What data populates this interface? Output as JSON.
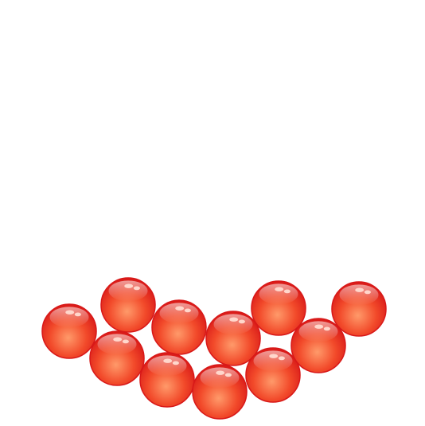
{
  "scene": {
    "background_color": "#ffffff",
    "object": "red-ball",
    "object_count": 11,
    "colors": {
      "highlight": "#ff9a6a",
      "body": "#f24a2a",
      "rim": "#d81818",
      "shine": "#ffd7cc"
    }
  }
}
